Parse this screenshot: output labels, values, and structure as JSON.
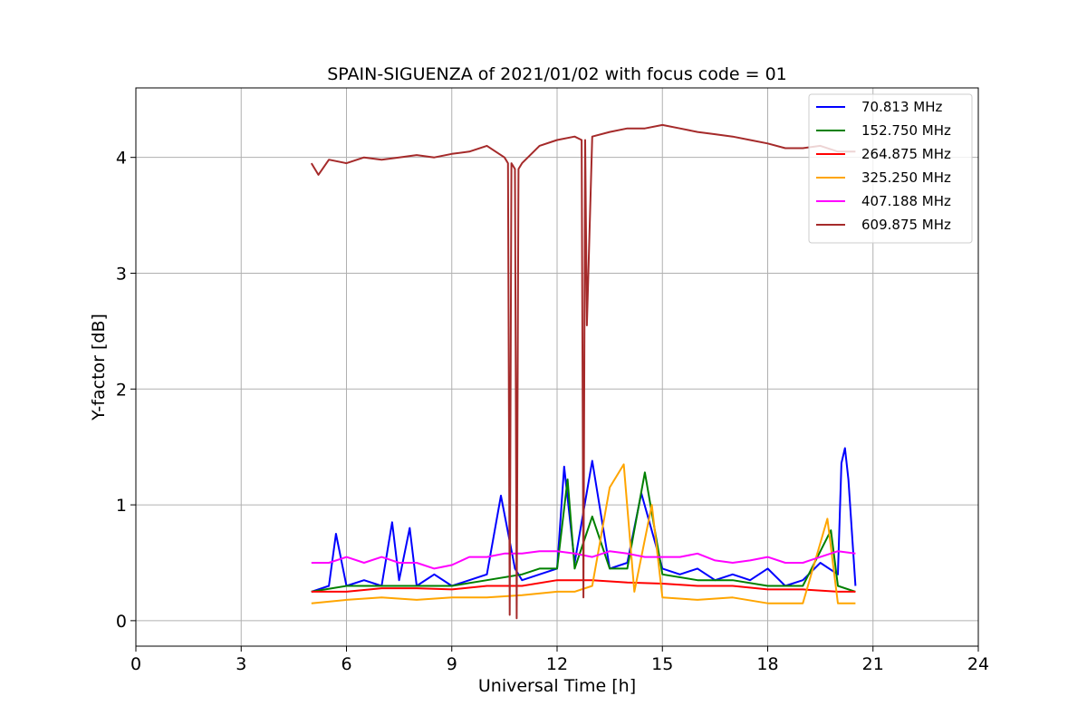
{
  "chart_data": {
    "type": "line",
    "title": "SPAIN-SIGUENZA of 2021/01/02 with focus code = 01",
    "xlabel": "Universal Time [h]",
    "ylabel": "Y-factor [dB]",
    "xlim": [
      0,
      24
    ],
    "ylim": [
      -0.22,
      4.6
    ],
    "xticks": [
      0,
      3,
      6,
      9,
      12,
      15,
      18,
      21,
      24
    ],
    "yticks": [
      0,
      1,
      2,
      3,
      4
    ],
    "grid": true,
    "legend_position": "top-right",
    "series": [
      {
        "name": " 70.813 MHz",
        "color": "#0000ff",
        "x": [
          5.0,
          5.5,
          5.7,
          6.0,
          6.5,
          7.0,
          7.3,
          7.5,
          7.8,
          8.0,
          8.5,
          9.0,
          9.5,
          10.0,
          10.4,
          10.8,
          11.0,
          11.5,
          12.0,
          12.2,
          12.5,
          13.0,
          13.5,
          14.0,
          14.4,
          15.0,
          15.5,
          16.0,
          16.5,
          17.0,
          17.5,
          18.0,
          18.5,
          19.0,
          19.5,
          20.0,
          20.1,
          20.2,
          20.3,
          20.5
        ],
        "y": [
          0.25,
          0.3,
          0.75,
          0.3,
          0.35,
          0.3,
          0.85,
          0.35,
          0.8,
          0.3,
          0.4,
          0.3,
          0.35,
          0.4,
          1.08,
          0.45,
          0.35,
          0.4,
          0.45,
          1.33,
          0.5,
          1.38,
          0.45,
          0.5,
          1.1,
          0.45,
          0.4,
          0.45,
          0.35,
          0.4,
          0.35,
          0.45,
          0.3,
          0.35,
          0.5,
          0.4,
          1.36,
          1.49,
          1.22,
          0.3
        ]
      },
      {
        "name": "152.750 MHz",
        "color": "#008000",
        "x": [
          5.0,
          6.0,
          7.0,
          8.0,
          9.0,
          10.0,
          11.0,
          11.5,
          12.0,
          12.3,
          12.5,
          13.0,
          13.5,
          14.0,
          14.5,
          15.0,
          16.0,
          17.0,
          18.0,
          19.0,
          19.8,
          20.0,
          20.5
        ],
        "y": [
          0.25,
          0.3,
          0.3,
          0.3,
          0.3,
          0.35,
          0.4,
          0.45,
          0.45,
          1.22,
          0.45,
          0.9,
          0.45,
          0.45,
          1.28,
          0.4,
          0.35,
          0.35,
          0.3,
          0.3,
          0.78,
          0.3,
          0.25
        ]
      },
      {
        "name": "264.875 MHz",
        "color": "#ff0000",
        "x": [
          5.0,
          6.0,
          7.0,
          8.0,
          9.0,
          10.0,
          11.0,
          12.0,
          13.0,
          14.0,
          15.0,
          16.0,
          17.0,
          18.0,
          19.0,
          20.0,
          20.5
        ],
        "y": [
          0.25,
          0.25,
          0.28,
          0.28,
          0.27,
          0.3,
          0.3,
          0.35,
          0.35,
          0.33,
          0.32,
          0.3,
          0.3,
          0.27,
          0.27,
          0.25,
          0.25
        ]
      },
      {
        "name": "325.250 MHz",
        "color": "#ffa500",
        "x": [
          5.0,
          6.0,
          7.0,
          8.0,
          9.0,
          10.0,
          11.0,
          12.0,
          12.5,
          13.0,
          13.5,
          13.9,
          14.2,
          14.7,
          15.0,
          16.0,
          17.0,
          18.0,
          19.0,
          19.7,
          20.0,
          20.5
        ],
        "y": [
          0.15,
          0.18,
          0.2,
          0.18,
          0.2,
          0.2,
          0.22,
          0.25,
          0.25,
          0.3,
          1.15,
          1.35,
          0.25,
          1.0,
          0.2,
          0.18,
          0.2,
          0.15,
          0.15,
          0.88,
          0.15,
          0.15
        ]
      },
      {
        "name": "407.188 MHz",
        "color": "#ff00ff",
        "x": [
          5.0,
          5.5,
          6.0,
          6.5,
          7.0,
          7.5,
          8.0,
          8.5,
          9.0,
          9.5,
          10.0,
          10.5,
          11.0,
          11.5,
          12.0,
          12.5,
          13.0,
          13.5,
          14.0,
          14.5,
          15.0,
          15.5,
          16.0,
          16.5,
          17.0,
          17.5,
          18.0,
          18.5,
          19.0,
          19.5,
          20.0,
          20.5
        ],
        "y": [
          0.5,
          0.5,
          0.55,
          0.5,
          0.55,
          0.5,
          0.5,
          0.45,
          0.48,
          0.55,
          0.55,
          0.58,
          0.58,
          0.6,
          0.6,
          0.58,
          0.55,
          0.6,
          0.58,
          0.55,
          0.55,
          0.55,
          0.58,
          0.52,
          0.5,
          0.52,
          0.55,
          0.5,
          0.5,
          0.55,
          0.6,
          0.58
        ]
      },
      {
        "name": "609.875 MHz",
        "color": "#a52a2a",
        "x": [
          5.0,
          5.2,
          5.5,
          6.0,
          6.5,
          7.0,
          7.5,
          8.0,
          8.5,
          9.0,
          9.5,
          10.0,
          10.5,
          10.6,
          10.65,
          10.7,
          10.8,
          10.85,
          10.9,
          11.0,
          11.5,
          12.0,
          12.5,
          12.7,
          12.75,
          12.8,
          12.85,
          13.0,
          13.5,
          14.0,
          14.5,
          15.0,
          15.5,
          16.0,
          16.5,
          17.0,
          17.5,
          18.0,
          18.5,
          19.0,
          19.5,
          20.0,
          20.5
        ],
        "y": [
          3.95,
          3.85,
          3.98,
          3.95,
          4.0,
          3.98,
          4.0,
          4.02,
          4.0,
          4.03,
          4.05,
          4.1,
          4.0,
          3.95,
          0.05,
          3.95,
          3.9,
          0.02,
          3.9,
          3.95,
          4.1,
          4.15,
          4.18,
          4.15,
          0.2,
          4.15,
          2.55,
          4.18,
          4.22,
          4.25,
          4.25,
          4.28,
          4.25,
          4.22,
          4.2,
          4.18,
          4.15,
          4.12,
          4.08,
          4.08,
          4.1,
          4.05,
          4.05
        ]
      }
    ]
  }
}
